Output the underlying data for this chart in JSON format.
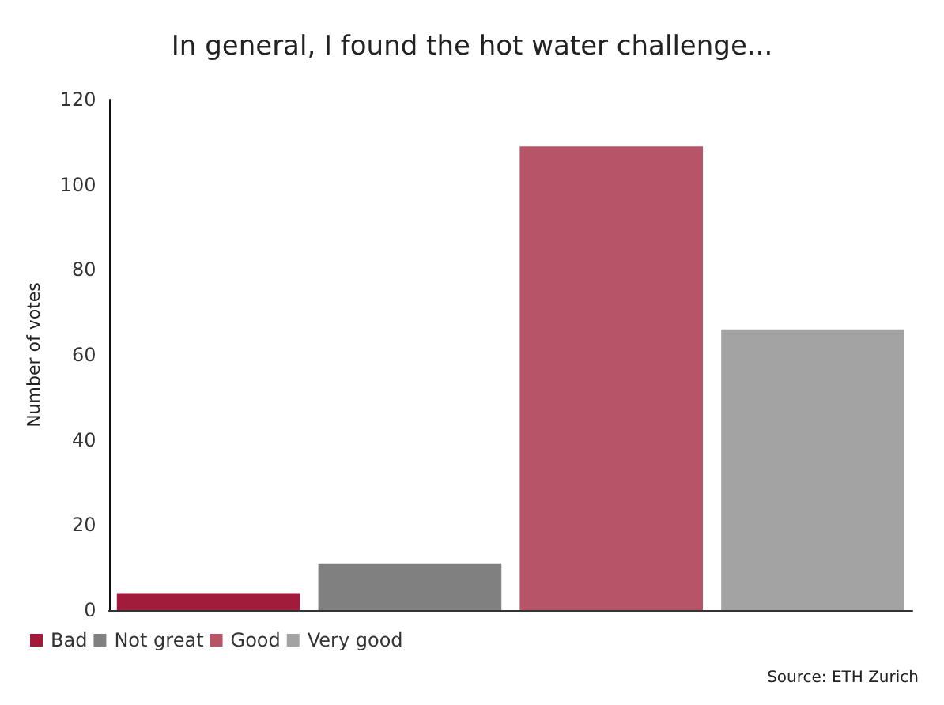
{
  "chart_data": {
    "type": "bar",
    "title": "In general, I found the hot water challenge...",
    "ylabel": "Number of votes",
    "categories": [
      null
    ],
    "series": [
      {
        "name": "Bad",
        "color": "#a01c3a",
        "values": [
          4
        ]
      },
      {
        "name": "Not great",
        "color": "#808080",
        "values": [
          11
        ]
      },
      {
        "name": "Good",
        "color": "#b85468",
        "values": [
          109
        ]
      },
      {
        "name": "Very good",
        "color": "#a3a3a3",
        "values": [
          66
        ]
      }
    ],
    "ylim": [
      0,
      120
    ],
    "yticks": [
      0,
      20,
      40,
      60,
      80,
      100,
      120
    ],
    "grid": false,
    "legend": "bottom left",
    "annotations": [
      "Source: ETH Zurich"
    ]
  }
}
